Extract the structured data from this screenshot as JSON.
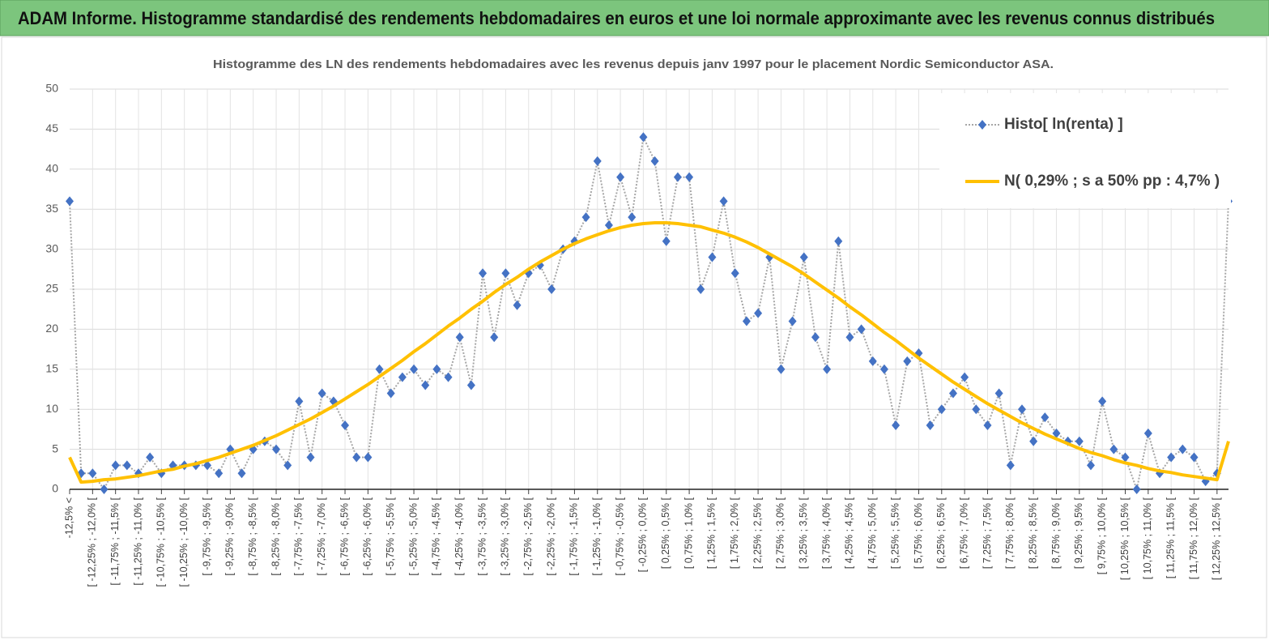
{
  "page_title": "ADAM Informe. Histogramme standardisé des rendements hebdomadaires en euros et une loi normale approximante avec les revenus connus distribués",
  "chart_data": {
    "type": "line",
    "title": "Histogramme des LN des rendements hebdomadaires avec les revenus depuis janv 1997 pour le placement Nordic Semiconductor ASA.",
    "categories": [
      "-12,5% <",
      null,
      "[ -12,25% ; -12,0% [",
      null,
      "[ -11,75% ; -11,5% [",
      null,
      "[ -11,25% ; -11,0% [",
      null,
      "[ -10,75% ; -10,5% [",
      null,
      "[ -10,25% ; -10,0% [",
      null,
      "[ -9,75% ; -9,5% [",
      null,
      "[ -9,25% ; -9,0% [",
      null,
      "[ -8,75% ; -8,5% [",
      null,
      "[ -8,25% ; -8,0% [",
      null,
      "[ -7,75% ; -7,5% [",
      null,
      "[ -7,25% ; -7,0% [",
      null,
      "[ -6,75% ; -6,5% [",
      null,
      "[ -6,25% ; -6,0% [",
      null,
      "[ -5,75% ; -5,5% [",
      null,
      "[ -5,25% ; -5,0% [",
      null,
      "[ -4,75% ; -4,5% [",
      null,
      "[ -4,25% ; -4,0% [",
      null,
      "[ -3,75% ; -3,5% [",
      null,
      "[ -3,25% ; -3,0% [",
      null,
      "[ -2,75% ; -2,5% [",
      null,
      "[ -2,25% ; -2,0% [",
      null,
      "[ -1,75% ; -1,5% [",
      null,
      "[ -1,25% ; -1,0% [",
      null,
      "[ -0,75% ; -0,5% [",
      null,
      "[ -0,25% ; 0,0% [",
      null,
      "[ 0,25% ; 0,5% [",
      null,
      "[ 0,75% ; 1,0% [",
      null,
      "[ 1,25% ; 1,5% [",
      null,
      "[ 1,75% ; 2,0% [",
      null,
      "[ 2,25% ; 2,5% [",
      null,
      "[ 2,75% ; 3,0% [",
      null,
      "[ 3,25% ; 3,5% [",
      null,
      "[ 3,75% ; 4,0% [",
      null,
      "[ 4,25% ; 4,5% [",
      null,
      "[ 4,75% ; 5,0% [",
      null,
      "[ 5,25% ; 5,5% [",
      null,
      "[ 5,75% ; 6,0% [",
      null,
      "[ 6,25% ; 6,5% [",
      null,
      "[ 6,75% ; 7,0% [",
      null,
      "[ 7,25% ; 7,5% [",
      null,
      "[ 7,75% ; 8,0% [",
      null,
      "[ 8,25% ; 8,5% [",
      null,
      "[ 8,75% ; 9,0% [",
      null,
      "[ 9,25% ; 9,5% [",
      null,
      "[ 9,75% ; 10,0% [",
      null,
      "[ 10,25% ; 10,5% [",
      null,
      "[ 10,75% ; 11,0% [",
      null,
      "[ 11,25% ; 11,5% [",
      null,
      "[ 11,75% ; 12,0% [",
      null,
      "[ 12,25% ; 12,5% [",
      null
    ],
    "series": [
      {
        "name": "Histo[ ln(renta) ]",
        "color": "#4472c4",
        "line_color": "#a6a6a6",
        "marker": "diamond",
        "values": [
          36,
          2,
          2,
          0,
          3,
          3,
          2,
          4,
          2,
          3,
          3,
          3,
          3,
          2,
          5,
          2,
          5,
          6,
          5,
          3,
          11,
          4,
          12,
          11,
          8,
          4,
          4,
          15,
          12,
          14,
          15,
          13,
          15,
          14,
          19,
          13,
          27,
          19,
          27,
          23,
          27,
          28,
          25,
          30,
          31,
          34,
          41,
          33,
          39,
          34,
          44,
          41,
          31,
          39,
          39,
          25,
          29,
          36,
          27,
          21,
          22,
          29,
          15,
          21,
          29,
          19,
          15,
          31,
          19,
          20,
          16,
          15,
          8,
          16,
          17,
          8,
          10,
          12,
          14,
          10,
          8,
          12,
          3,
          10,
          6,
          9,
          7,
          6,
          6,
          3,
          11,
          5,
          4,
          0,
          7,
          2,
          4,
          5,
          4,
          1,
          2,
          36
        ]
      },
      {
        "name": "N( 0,29% ; s a 50% pp : 4,7% )",
        "color": "#ffc000",
        "values": [
          4,
          0.9,
          1,
          1.2,
          1.3,
          1.5,
          1.7,
          2,
          2.3,
          2.5,
          2.9,
          3.2,
          3.6,
          4,
          4.5,
          5,
          5.5,
          6.1,
          6.7,
          7.4,
          8.1,
          8.8,
          9.6,
          10.4,
          11.3,
          12.2,
          13.1,
          14.1,
          15.1,
          16.1,
          17.2,
          18.2,
          19.3,
          20.4,
          21.4,
          22.5,
          23.5,
          24.6,
          25.6,
          26.5,
          27.5,
          28.4,
          29.2,
          30,
          30.7,
          31.3,
          31.8,
          32.3,
          32.7,
          33,
          33.2,
          33.3,
          33.3,
          33.2,
          33,
          32.8,
          32.4,
          32,
          31.5,
          30.9,
          30.2,
          29.4,
          28.6,
          27.8,
          26.9,
          25.9,
          24.9,
          23.9,
          22.8,
          21.8,
          20.7,
          19.6,
          18.6,
          17.5,
          16.4,
          15.4,
          14.4,
          13.4,
          12.5,
          11.6,
          10.7,
          9.9,
          9.1,
          8.3,
          7.6,
          6.9,
          6.3,
          5.7,
          5.1,
          4.6,
          4.2,
          3.7,
          3.3,
          3,
          2.6,
          2.3,
          2.1,
          1.8,
          1.6,
          1.4,
          1.2,
          6
        ]
      }
    ],
    "ylim": [
      0,
      50
    ],
    "yticks": [
      0,
      5,
      10,
      15,
      20,
      25,
      30,
      35,
      40,
      45,
      50
    ],
    "grid": true,
    "legend": "upper right"
  }
}
